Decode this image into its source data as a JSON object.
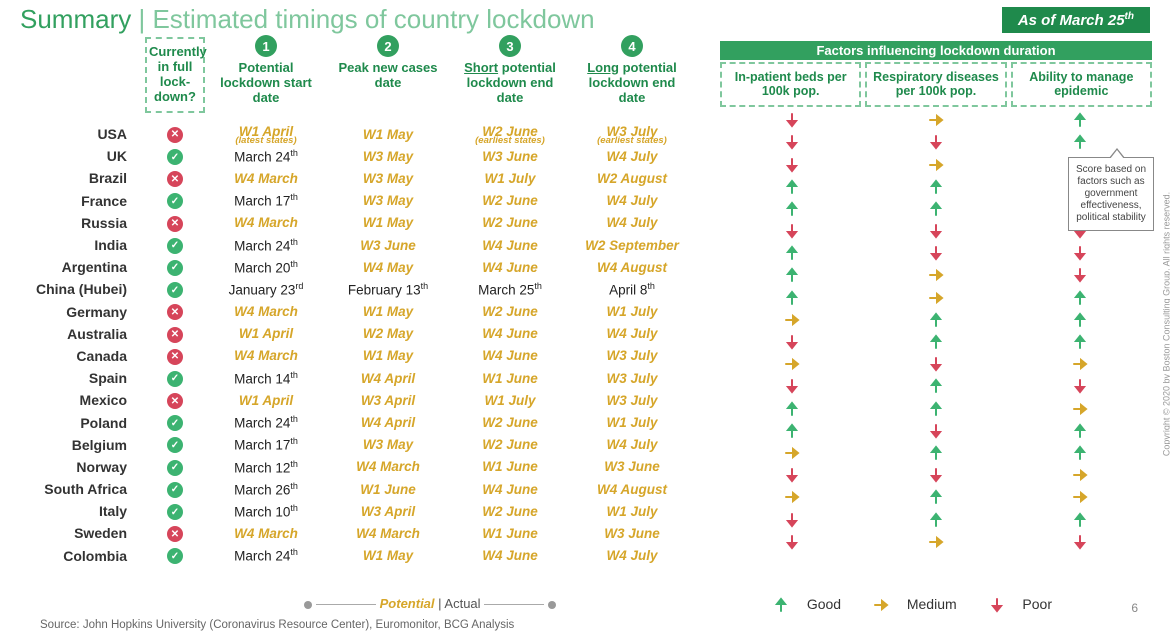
{
  "title_prefix": "Summary",
  "title_sep": " | ",
  "title_main": "Estimated timings of country lockdown",
  "asof_label": "As of March 25",
  "asof_suffix": "th",
  "headers": {
    "country_spacer": "",
    "current_lockdown": "Currently in full lock-down?",
    "col1_num": "1",
    "col1": "Potential lockdown start date",
    "col2_num": "2",
    "col2": "Peak new cases date",
    "col3_num": "3",
    "col3_under": "Short",
    "col3_rest": "potential lockdown end date",
    "col4_num": "4",
    "col4_under": "Long",
    "col4_rest": "potential lockdown end date"
  },
  "factors_title": "Factors influencing lockdown duration",
  "factor_headers": [
    "In-patient beds per 100k pop.",
    "Respiratory diseases per 100k pop.",
    "Ability to manage epidemic"
  ],
  "callout": "Score based on factors such as government effectiveness, political stability",
  "legend_potential": "Potential",
  "legend_actual": "Actual",
  "legend_sep": " | ",
  "legend_good": "Good",
  "legend_medium": "Medium",
  "legend_poor": "Poor",
  "source": "Source: John Hopkins University (Coronavirus Resource Center), Euromonitor, BCG Analysis",
  "page_number": "6",
  "copyright": "Copyright © 2020 by Boston Consulting Group. All rights reserved.",
  "colors": {
    "good": "#3cb371",
    "medium": "#d6a62a",
    "poor": "#d6455a",
    "potential_text": "#d6a62a",
    "actual_text": "#222222",
    "brand_green": "#32a05f"
  },
  "rows": [
    {
      "country": "USA",
      "lock": false,
      "c1": {
        "t": "W1 April",
        "p": true,
        "sub": "(latest states)"
      },
      "c2": {
        "t": "W1 May",
        "p": true
      },
      "c3": {
        "t": "W2 June",
        "p": true,
        "sub": "(earliest states)"
      },
      "c4": {
        "t": "W3 July",
        "p": true,
        "sub": "(earliest states)"
      },
      "f": [
        "poor",
        "medium",
        "good"
      ]
    },
    {
      "country": "UK",
      "lock": true,
      "c1": {
        "t": "March 24",
        "ord": "th",
        "p": false
      },
      "c2": {
        "t": "W3 May",
        "p": true
      },
      "c3": {
        "t": "W3 June",
        "p": true
      },
      "c4": {
        "t": "W4 July",
        "p": true
      },
      "f": [
        "poor",
        "poor",
        "good"
      ]
    },
    {
      "country": "Brazil",
      "lock": false,
      "c1": {
        "t": "W4 March",
        "p": true
      },
      "c2": {
        "t": "W3 May",
        "p": true
      },
      "c3": {
        "t": "W1 July",
        "p": true
      },
      "c4": {
        "t": "W2 August",
        "p": true
      },
      "f": [
        "poor",
        "medium",
        "poor"
      ]
    },
    {
      "country": "France",
      "lock": true,
      "c1": {
        "t": "March 17",
        "ord": "th",
        "p": false
      },
      "c2": {
        "t": "W3 May",
        "p": true
      },
      "c3": {
        "t": "W2 June",
        "p": true
      },
      "c4": {
        "t": "W4 July",
        "p": true
      },
      "f": [
        "good",
        "good",
        "medium"
      ]
    },
    {
      "country": "Russia",
      "lock": false,
      "c1": {
        "t": "W4 March",
        "p": true
      },
      "c2": {
        "t": "W1 May",
        "p": true
      },
      "c3": {
        "t": "W2 June",
        "p": true
      },
      "c4": {
        "t": "W4 July",
        "p": true
      },
      "f": [
        "good",
        "good",
        "poor"
      ]
    },
    {
      "country": "India",
      "lock": true,
      "c1": {
        "t": "March 24",
        "ord": "th",
        "p": false
      },
      "c2": {
        "t": "W3 June",
        "p": true
      },
      "c3": {
        "t": "W4 June",
        "p": true
      },
      "c4": {
        "t": "W2 September",
        "p": true
      },
      "f": [
        "poor",
        "poor",
        "poor"
      ]
    },
    {
      "country": "Argentina",
      "lock": true,
      "c1": {
        "t": "March 20",
        "ord": "th",
        "p": false
      },
      "c2": {
        "t": "W4 May",
        "p": true
      },
      "c3": {
        "t": "W4 June",
        "p": true
      },
      "c4": {
        "t": "W4 August",
        "p": true
      },
      "f": [
        "good",
        "poor",
        "poor"
      ]
    },
    {
      "country": "China (Hubei)",
      "lock": true,
      "c1": {
        "t": "January 23",
        "ord": "rd",
        "p": false
      },
      "c2": {
        "t": "February 13",
        "ord": "th",
        "p": false
      },
      "c3": {
        "t": "March 25",
        "ord": "th",
        "p": false
      },
      "c4": {
        "t": "April 8",
        "ord": "th",
        "p": false
      },
      "f": [
        "good",
        "medium",
        "poor"
      ]
    },
    {
      "country": "Germany",
      "lock": false,
      "c1": {
        "t": "W4 March",
        "p": true
      },
      "c2": {
        "t": "W1 May",
        "p": true
      },
      "c3": {
        "t": "W2 June",
        "p": true
      },
      "c4": {
        "t": "W1 July",
        "p": true
      },
      "f": [
        "good",
        "medium",
        "good"
      ]
    },
    {
      "country": "Australia",
      "lock": false,
      "c1": {
        "t": "W1 April",
        "p": true
      },
      "c2": {
        "t": "W2 May",
        "p": true
      },
      "c3": {
        "t": "W4 June",
        "p": true
      },
      "c4": {
        "t": "W4 July",
        "p": true
      },
      "f": [
        "medium",
        "good",
        "good"
      ]
    },
    {
      "country": "Canada",
      "lock": false,
      "c1": {
        "t": "W4 March",
        "p": true
      },
      "c2": {
        "t": "W1 May",
        "p": true
      },
      "c3": {
        "t": "W4 June",
        "p": true
      },
      "c4": {
        "t": "W3 July",
        "p": true
      },
      "f": [
        "poor",
        "good",
        "good"
      ]
    },
    {
      "country": "Spain",
      "lock": true,
      "c1": {
        "t": "March 14",
        "ord": "th",
        "p": false
      },
      "c2": {
        "t": "W4 April",
        "p": true
      },
      "c3": {
        "t": "W1 June",
        "p": true
      },
      "c4": {
        "t": "W3 July",
        "p": true
      },
      "f": [
        "medium",
        "poor",
        "medium"
      ]
    },
    {
      "country": "Mexico",
      "lock": false,
      "c1": {
        "t": "W1 April",
        "p": true
      },
      "c2": {
        "t": "W3 April",
        "p": true
      },
      "c3": {
        "t": "W1 July",
        "p": true
      },
      "c4": {
        "t": "W3 July",
        "p": true
      },
      "f": [
        "poor",
        "good",
        "poor"
      ]
    },
    {
      "country": "Poland",
      "lock": true,
      "c1": {
        "t": "March 24",
        "ord": "th",
        "p": false
      },
      "c2": {
        "t": "W4 April",
        "p": true
      },
      "c3": {
        "t": "W2 June",
        "p": true
      },
      "c4": {
        "t": "W1 July",
        "p": true
      },
      "f": [
        "good",
        "good",
        "medium"
      ]
    },
    {
      "country": "Belgium",
      "lock": true,
      "c1": {
        "t": "March 17",
        "ord": "th",
        "p": false
      },
      "c2": {
        "t": "W3 May",
        "p": true
      },
      "c3": {
        "t": "W2 June",
        "p": true
      },
      "c4": {
        "t": "W4 July",
        "p": true
      },
      "f": [
        "good",
        "poor",
        "good"
      ]
    },
    {
      "country": "Norway",
      "lock": true,
      "c1": {
        "t": "March 12",
        "ord": "th",
        "p": false
      },
      "c2": {
        "t": "W4 March",
        "p": true
      },
      "c3": {
        "t": "W1 June",
        "p": true
      },
      "c4": {
        "t": "W3 June",
        "p": true
      },
      "f": [
        "medium",
        "good",
        "good"
      ]
    },
    {
      "country": "South Africa",
      "lock": true,
      "c1": {
        "t": "March 26",
        "ord": "th",
        "p": false
      },
      "c2": {
        "t": "W1 June",
        "p": true
      },
      "c3": {
        "t": "W4 June",
        "p": true
      },
      "c4": {
        "t": "W4 August",
        "p": true
      },
      "f": [
        "poor",
        "poor",
        "medium"
      ]
    },
    {
      "country": "Italy",
      "lock": true,
      "c1": {
        "t": "March 10",
        "ord": "th",
        "p": false
      },
      "c2": {
        "t": "W3 April",
        "p": true
      },
      "c3": {
        "t": "W2 June",
        "p": true
      },
      "c4": {
        "t": "W1 July",
        "p": true
      },
      "f": [
        "medium",
        "good",
        "medium"
      ]
    },
    {
      "country": "Sweden",
      "lock": false,
      "c1": {
        "t": "W4 March",
        "p": true
      },
      "c2": {
        "t": "W4 March",
        "p": true
      },
      "c3": {
        "t": "W1 June",
        "p": true
      },
      "c4": {
        "t": "W3 June",
        "p": true
      },
      "f": [
        "poor",
        "good",
        "good"
      ]
    },
    {
      "country": "Colombia",
      "lock": true,
      "c1": {
        "t": "March 24",
        "ord": "th",
        "p": false
      },
      "c2": {
        "t": "W1 May",
        "p": true
      },
      "c3": {
        "t": "W4 June",
        "p": true
      },
      "c4": {
        "t": "W4 July",
        "p": true
      },
      "f": [
        "poor",
        "medium",
        "poor"
      ]
    }
  ]
}
